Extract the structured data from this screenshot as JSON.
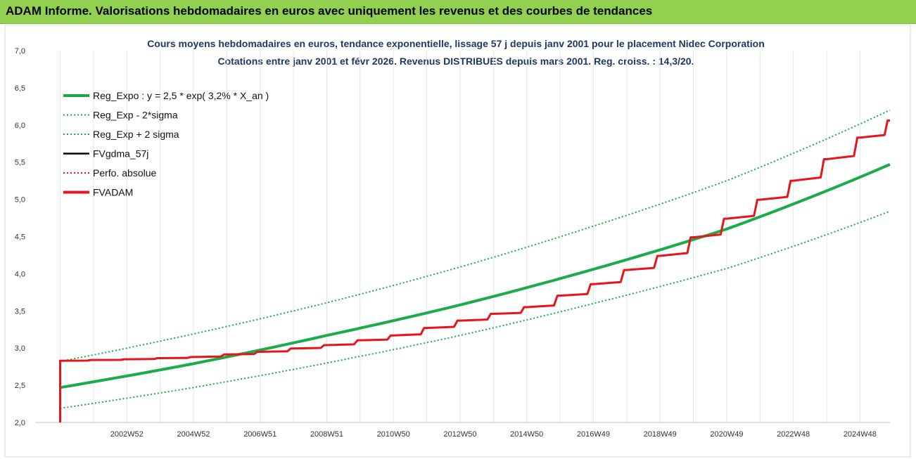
{
  "header": {
    "title": "ADAM Informe. Valorisations hebdomadaires en euros avec uniquement les revenus et des courbes de tendances"
  },
  "colors": {
    "banner": "#92d050",
    "reg_expo": "#1aab4b",
    "fvgdma": "#000000",
    "fvadam": "#e8141c",
    "title": "#1f3864"
  },
  "chart_data": {
    "type": "line",
    "title": "Cours moyens hebdomadaires en euros, tendance exponentielle, lissage 57 j depuis janv 2001 pour le placement Nidec Corporation",
    "subtitle": "Cotations entre janv 2001 et févr 2026. Revenus DISTRIBUES depuis mars 2001. Reg. croiss. : 14,3/20.",
    "ylim": [
      2.0,
      7.0
    ],
    "xlim": [
      2000.25,
      2025.9
    ],
    "y_ticks": [
      "2,0",
      "2,5",
      "3,0",
      "3,5",
      "4,0",
      "4,5",
      "5,0",
      "5,5",
      "6,0",
      "6,5",
      "7,0"
    ],
    "x_ticks": [
      {
        "label": "2002W52",
        "x": 2003.0
      },
      {
        "label": "2004W52",
        "x": 2005.0
      },
      {
        "label": "2006W51",
        "x": 2007.0
      },
      {
        "label": "2008W51",
        "x": 2009.0
      },
      {
        "label": "2010W50",
        "x": 2011.0
      },
      {
        "label": "2012W50",
        "x": 2013.0
      },
      {
        "label": "2014W50",
        "x": 2015.0
      },
      {
        "label": "2016W49",
        "x": 2017.0
      },
      {
        "label": "2018W49",
        "x": 2019.0
      },
      {
        "label": "2020W49",
        "x": 2021.0
      },
      {
        "label": "2022W48",
        "x": 2023.0
      },
      {
        "label": "2024W48",
        "x": 2025.0
      }
    ],
    "legend_position": "top-left",
    "grid": {
      "vertical": true,
      "horizontal": false
    },
    "series": [
      {
        "name": "Reg_Expo : y = 2,5 * exp( 3,2% *  X_an )",
        "style": "solid-thick",
        "color": "#1aab4b",
        "x": [
          2001.0,
          2005.0,
          2009.0,
          2013.0,
          2017.0,
          2021.0,
          2025.9
        ],
        "y": [
          2.47,
          2.79,
          3.17,
          3.58,
          4.06,
          4.6,
          5.47
        ]
      },
      {
        "name": "Reg_Exp - 2*sigma",
        "style": "dotted",
        "color": "#1aab4b",
        "x": [
          2001.0,
          2005.0,
          2009.0,
          2013.0,
          2017.0,
          2021.0,
          2025.9
        ],
        "y": [
          2.19,
          2.47,
          2.8,
          3.17,
          3.6,
          4.07,
          4.84
        ]
      },
      {
        "name": "Reg_Exp + 2 sigma",
        "style": "dotted",
        "color": "#1aab4b",
        "x": [
          2001.0,
          2005.0,
          2009.0,
          2013.0,
          2017.0,
          2021.0,
          2025.9
        ],
        "y": [
          2.82,
          3.19,
          3.61,
          4.09,
          4.64,
          5.25,
          6.2
        ]
      },
      {
        "name": "FVgdma_57j",
        "style": "solid",
        "color": "#000000",
        "x": [
          2001.0,
          2003.0,
          2005.0,
          2007.0,
          2009.0,
          2011.0,
          2013.0,
          2015.0,
          2017.0,
          2019.0,
          2021.0,
          2023.0,
          2025.0,
          2025.9
        ],
        "y": [
          2.83,
          2.85,
          2.88,
          2.95,
          3.04,
          3.17,
          3.37,
          3.55,
          3.86,
          4.24,
          4.74,
          5.25,
          5.83,
          6.06
        ]
      },
      {
        "name": "Perfo. absolue",
        "style": "dotted",
        "color": "#e8141c",
        "x": [],
        "y": []
      },
      {
        "name": "FVADAM",
        "style": "solid-thick",
        "color": "#e8141c",
        "x": [
          2001.0,
          2001.0,
          2003.0,
          2005.0,
          2007.0,
          2009.0,
          2011.0,
          2013.0,
          2015.0,
          2017.0,
          2019.0,
          2021.0,
          2023.0,
          2025.0,
          2025.9
        ],
        "y": [
          2.0,
          2.83,
          2.85,
          2.88,
          2.95,
          3.04,
          3.17,
          3.37,
          3.55,
          3.86,
          4.24,
          4.74,
          5.25,
          5.83,
          6.06
        ]
      }
    ]
  }
}
